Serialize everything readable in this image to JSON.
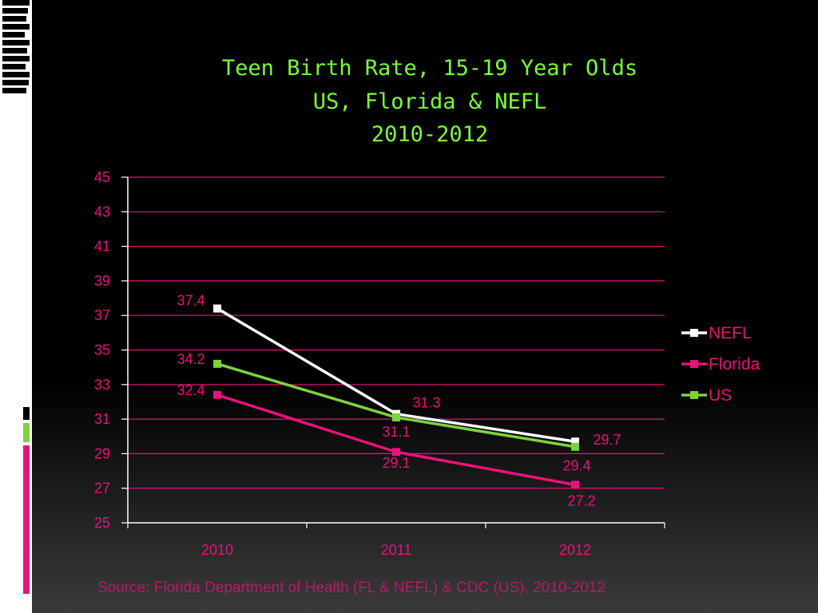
{
  "slide": {
    "source": "Source: Florida Department of Health (FL & NEFL) & CDC (US), 2010-2012"
  },
  "chart_data": {
    "type": "line",
    "title": [
      "Teen Birth Rate, 15-19 Year Olds",
      "US, Florida & NEFL",
      "2010-2012"
    ],
    "categories": [
      "2010",
      "2011",
      "2012"
    ],
    "ylim": [
      25,
      45
    ],
    "yticks": [
      25,
      27,
      29,
      31,
      33,
      35,
      37,
      39,
      41,
      43,
      45
    ],
    "grid": true,
    "legend_position": "right",
    "series": [
      {
        "name": "NEFL",
        "values": [
          37.4,
          31.3,
          29.7
        ],
        "color": "#ffffff",
        "labels": [
          "37.4",
          "31.3",
          "29.7"
        ]
      },
      {
        "name": "Florida",
        "values": [
          32.4,
          29.1,
          27.2
        ],
        "color": "#e8127c",
        "labels": [
          "32.4",
          "29.1",
          "27.2"
        ]
      },
      {
        "name": "US",
        "values": [
          34.2,
          31.1,
          29.4
        ],
        "color": "#7dd33c",
        "labels": [
          "34.2",
          "31.1",
          "29.4"
        ]
      }
    ],
    "colors": {
      "gridline": "#e8127c",
      "axis": "#ffffff",
      "title": "#7CFC3A",
      "label": "#e8127c"
    }
  }
}
